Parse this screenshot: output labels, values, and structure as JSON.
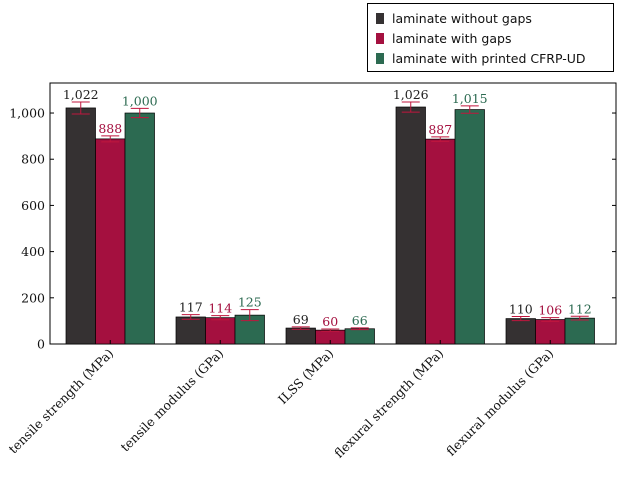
{
  "chart_data": {
    "type": "bar",
    "title": "",
    "xlabel": "",
    "ylabel": "",
    "ylim": [
      0,
      1130
    ],
    "yticks": [
      0,
      200,
      400,
      600,
      800,
      1000
    ],
    "ytick_labels": [
      "0",
      "200",
      "400",
      "600",
      "800",
      "1,000"
    ],
    "categories": [
      "tensile strength (MPa)",
      "tensile modulus (GPa)",
      "ILSS (MPa)",
      "flexural strength (MPa)",
      "flexural modulus (GPa)"
    ],
    "series": [
      {
        "name": "laminate without gaps",
        "color": "#353132",
        "label_color": "#222222",
        "values": [
          1022,
          117,
          69,
          1026,
          110
        ],
        "labels": [
          "1,022",
          "117",
          "69",
          "1,026",
          "110"
        ],
        "errors": [
          26,
          10,
          5,
          22,
          9
        ]
      },
      {
        "name": "laminate with gaps",
        "color": "#a4103f",
        "label_color": "#a4103f",
        "values": [
          888,
          114,
          60,
          887,
          106
        ],
        "labels": [
          "888",
          "114",
          "60",
          "887",
          "106"
        ],
        "errors": [
          13,
          9,
          5,
          10,
          8
        ]
      },
      {
        "name": "laminate with printed CFRP-UD",
        "color": "#2c6a51",
        "label_color": "#2c6a51",
        "values": [
          1000,
          125,
          66,
          1015,
          112
        ],
        "labels": [
          "1,000",
          "125",
          "66",
          "1,015",
          "112"
        ],
        "errors": [
          20,
          24,
          4,
          16,
          8
        ]
      }
    ],
    "grid": false,
    "legend_position": "top-right, outside plot"
  }
}
